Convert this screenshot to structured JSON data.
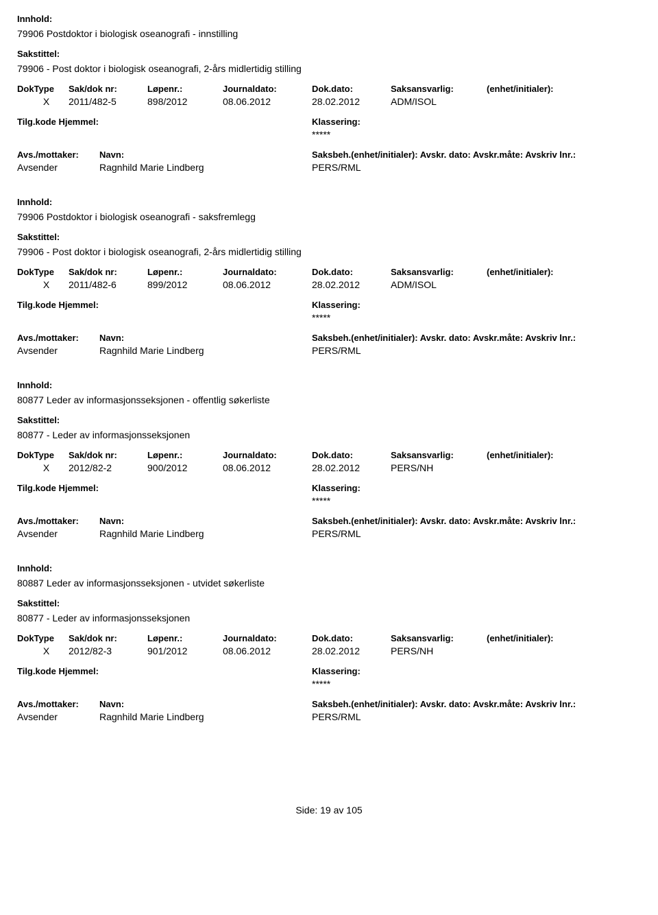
{
  "labels": {
    "innhold": "Innhold:",
    "sakstittel": "Sakstittel:",
    "doktype": "DokType",
    "sakdok": "Sak/dok nr:",
    "lopenr": "Løpenr.:",
    "journaldato": "Journaldato:",
    "dokdato": "Dok.dato:",
    "saksansvarlig": "Saksansvarlig:",
    "enhet": "(enhet/initialer):",
    "tilgkode": "Tilg.kode",
    "hjemmel": "Hjemmel:",
    "klassering": "Klassering:",
    "avsmottaker": "Avs./mottaker:",
    "navn": "Navn:",
    "saksbeh": "Saksbeh.(enhet/initialer):",
    "avskrdato": "Avskr. dato:",
    "avskrmate": "Avskr.måte:",
    "avskrivlnr": "Avskriv lnr.:",
    "avsender": "Avsender",
    "side": "Side:",
    "av": "av"
  },
  "stars": "*****",
  "records": [
    {
      "innhold": "79906 Postdoktor i biologisk oseanografi - innstilling",
      "sakstittel": "79906 - Post doktor i biologisk oseanografi, 2-års midlertidig stilling",
      "doktype": "X",
      "sakdok": "2011/482-5",
      "lopenr": "898/2012",
      "journaldato": "08.06.2012",
      "dokdato": "28.02.2012",
      "saksansvarlig": "ADM/ISOL",
      "enhet": "",
      "navn": "Ragnhild Marie Lindberg",
      "saksbeh": "PERS/RML"
    },
    {
      "innhold": "79906 Postdoktor i biologisk oseanografi - saksfremlegg",
      "sakstittel": "79906 - Post doktor i biologisk oseanografi, 2-års midlertidig stilling",
      "doktype": "X",
      "sakdok": "2011/482-6",
      "lopenr": "899/2012",
      "journaldato": "08.06.2012",
      "dokdato": "28.02.2012",
      "saksansvarlig": "ADM/ISOL",
      "enhet": "",
      "navn": "Ragnhild Marie Lindberg",
      "saksbeh": "PERS/RML"
    },
    {
      "innhold": "80877 Leder av informasjonsseksjonen - offentlig søkerliste",
      "sakstittel": "80877 - Leder av informasjonsseksjonen",
      "doktype": "X",
      "sakdok": "2012/82-2",
      "lopenr": "900/2012",
      "journaldato": "08.06.2012",
      "dokdato": "28.02.2012",
      "saksansvarlig": "PERS/NH",
      "enhet": "",
      "navn": "Ragnhild Marie Lindberg",
      "saksbeh": "PERS/RML"
    },
    {
      "innhold": "80887 Leder av informasjonsseksjonen - utvidet søkerliste",
      "sakstittel": "80877 - Leder av informasjonsseksjonen",
      "doktype": "X",
      "sakdok": "2012/82-3",
      "lopenr": "901/2012",
      "journaldato": "08.06.2012",
      "dokdato": "28.02.2012",
      "saksansvarlig": "PERS/NH",
      "enhet": "",
      "navn": "Ragnhild Marie Lindberg",
      "saksbeh": "PERS/RML"
    }
  ],
  "footer": {
    "page": "19",
    "total": "105"
  }
}
